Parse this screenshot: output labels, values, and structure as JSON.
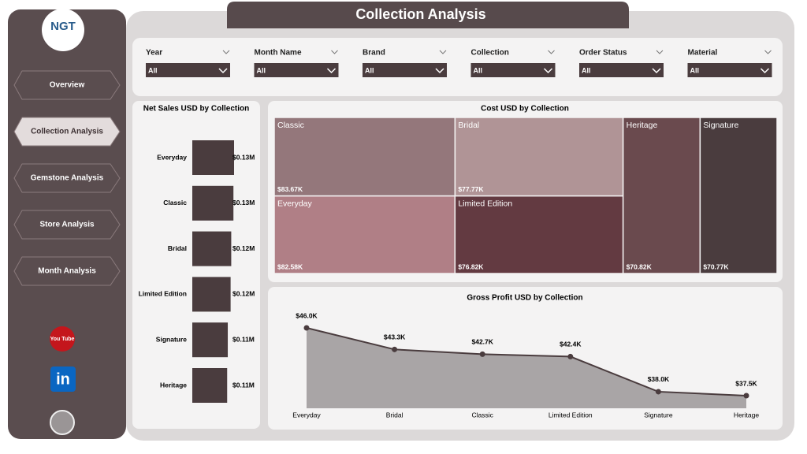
{
  "header": {
    "title": "Collection Analysis"
  },
  "sidebar": {
    "logo": "NGT",
    "nav": [
      "Overview",
      "Collection Analysis",
      "Gemstone Analysis",
      "Store Analysis",
      "Month Analysis"
    ],
    "active": 1,
    "icons": [
      "You Tube",
      "in"
    ]
  },
  "filters": [
    {
      "label": "Year",
      "value": "All"
    },
    {
      "label": "Month Name",
      "value": "All"
    },
    {
      "label": "Brand",
      "value": "All"
    },
    {
      "label": "Collection",
      "value": "All"
    },
    {
      "label": "Order Status",
      "value": "All"
    },
    {
      "label": "Material",
      "value": "All"
    }
  ],
  "chart_data": [
    {
      "type": "hbar",
      "title": "Net Sales USD by Collection",
      "categories": [
        "Everyday",
        "Classic",
        "Bridal",
        "Limited Edition",
        "Signature",
        "Heritage"
      ],
      "values": [
        0.133,
        0.131,
        0.124,
        0.122,
        0.113,
        0.111
      ],
      "value_labels": [
        "$0.13M",
        "$0.13M",
        "$0.12M",
        "$0.12M",
        "$0.11M",
        "$0.11M"
      ],
      "color": "#4a3c3e"
    },
    {
      "type": "treemap",
      "title": "Cost USD by Collection",
      "categories": [
        "Classic",
        "Bridal",
        "Everyday",
        "Limited Edition",
        "Heritage",
        "Signature"
      ],
      "values": [
        83.67,
        77.77,
        82.58,
        76.82,
        70.82,
        70.77
      ],
      "value_labels": [
        "$83.67K",
        "$77.77K",
        "$82.58K",
        "$76.82K",
        "$70.82K",
        "$70.77K"
      ],
      "colors": [
        "#94777b",
        "#b09496",
        "#b07f86",
        "#633a41",
        "#6a4a4e",
        "#4a3c3e"
      ]
    },
    {
      "type": "area",
      "title": "Gross Profit USD by Collection",
      "categories": [
        "Everyday",
        "Bridal",
        "Classic",
        "Limited Edition",
        "Signature",
        "Heritage"
      ],
      "values": [
        46.0,
        43.3,
        42.7,
        42.4,
        38.0,
        37.5
      ],
      "value_labels": [
        "$46.0K",
        "$43.3K",
        "$42.7K",
        "$42.4K",
        "$38.0K",
        "$37.5K"
      ],
      "color": "#4a3c3e",
      "fill": "#a9a5a6"
    }
  ]
}
